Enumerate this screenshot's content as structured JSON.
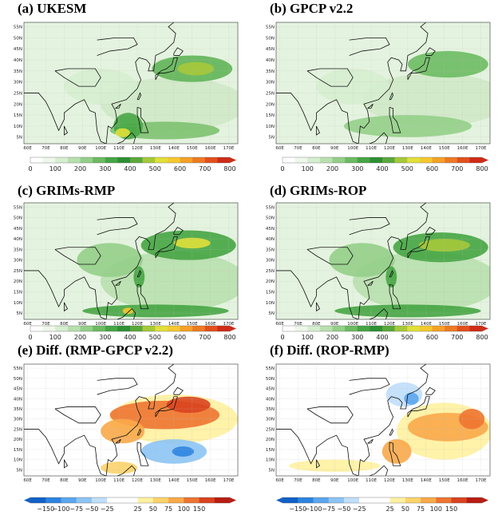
{
  "panels": [
    {
      "title": "(a) UKESM"
    },
    {
      "title": "(b) GPCP v2.2"
    },
    {
      "title": "(c) GRIMs-RMP"
    },
    {
      "title": "(d) GRIMs-ROP"
    },
    {
      "title": "(e) Diff. (RMP-GPCP v2.2)"
    },
    {
      "title": "(f) Diff. (ROP-RMP)"
    }
  ],
  "lat_labels": [
    "55N",
    "50N",
    "45N",
    "40N",
    "35N",
    "30N",
    "25N",
    "20N",
    "15N",
    "10N",
    "5N"
  ],
  "lon_labels": [
    "60E",
    "70E",
    "80E",
    "90E",
    "100E",
    "110E",
    "120E",
    "130E",
    "140E",
    "150E",
    "160E",
    "170E"
  ],
  "colorbars": {
    "precip": [
      "0",
      "100",
      "200",
      "300",
      "400",
      "500",
      "600",
      "700",
      "800"
    ],
    "diff": [
      "−150",
      "−100",
      "−75",
      "−50",
      "−25",
      "25",
      "50",
      "75",
      "100",
      "150"
    ]
  }
}
